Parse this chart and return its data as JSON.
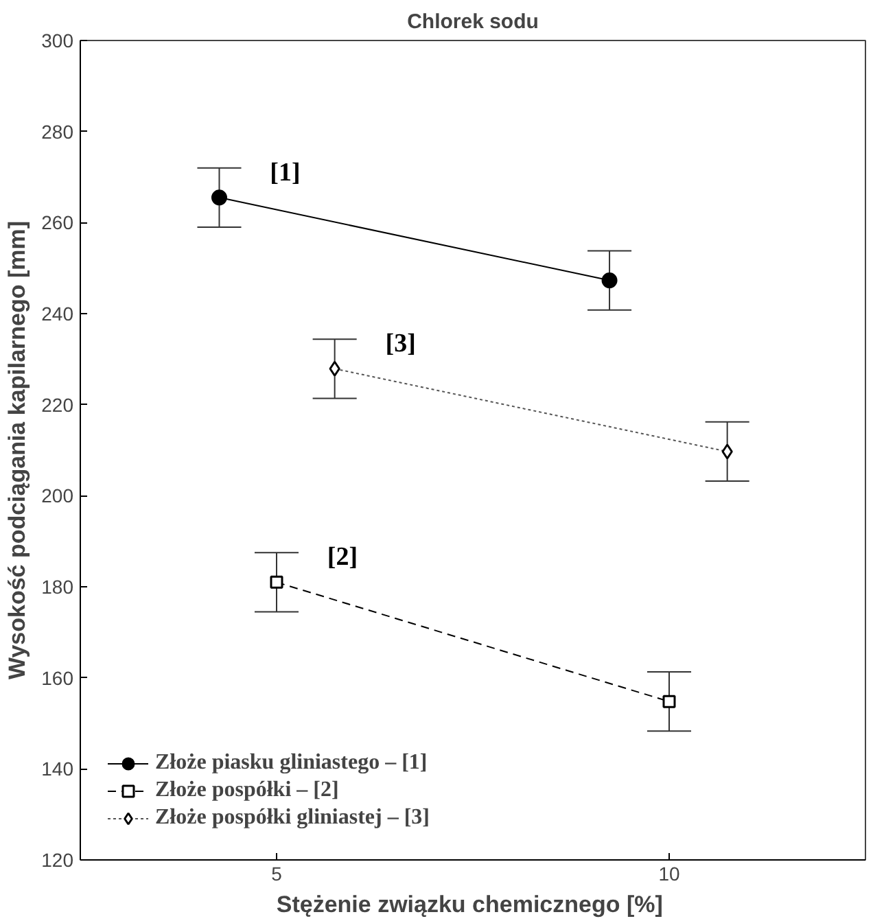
{
  "chart_data": {
    "type": "line",
    "title": "Chlorek sodu",
    "xlabel": "Stężenie związku chemicznego  [%]",
    "ylabel": "Wysokość podciągania kapilarnego [mm]",
    "xlim": [
      2.5,
      12.5
    ],
    "xticks": [
      5,
      10
    ],
    "ylim": [
      120,
      300
    ],
    "yticks": [
      120,
      140,
      160,
      180,
      200,
      220,
      240,
      260,
      280,
      300
    ],
    "grid": false,
    "legend": "bottom left",
    "series": [
      {
        "name": "Złoże piasku gliniastego – [1]",
        "color": "#000000",
        "x": [
          4.27,
          9.24
        ],
        "values": [
          265.5,
          247.3
        ],
        "errors": [
          6.5,
          6.5
        ],
        "marker": "circle",
        "line_style": "solid"
      },
      {
        "name": "Złoże pospółki – [2]",
        "color": "#000000",
        "x": [
          5,
          10
        ],
        "values": [
          181,
          154.8
        ],
        "errors": [
          6.5,
          6.5
        ],
        "marker": "square",
        "line_style": "dashed"
      },
      {
        "name": "Złoże pospółki gliniastej – [3]",
        "color": "#555555",
        "x": [
          5.74,
          10.74
        ],
        "values": [
          227.9,
          209.7
        ],
        "errors": [
          6.5,
          6.5
        ],
        "marker": "diamond",
        "line_style": "dotted"
      }
    ],
    "annotations": [
      "[1]",
      "[2]",
      "[3]"
    ]
  }
}
